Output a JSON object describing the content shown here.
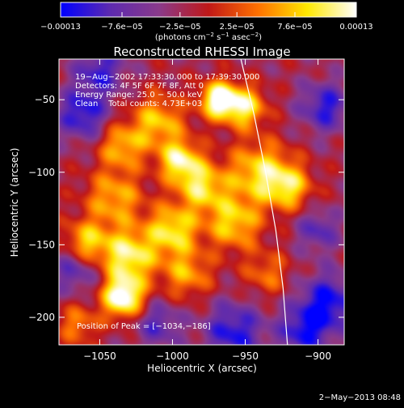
{
  "chart_data": {
    "type": "heatmap",
    "title": "Reconstructed RHESSI Image",
    "xlabel": "Heliocentric X (arcsec)",
    "ylabel": "Heliocentric Y (arcsec)",
    "xlim": [
      -1078,
      -882
    ],
    "ylim": [
      -219,
      -22
    ],
    "xticks": [
      -1050,
      -1000,
      -950,
      -900
    ],
    "xtick_labels": [
      "−1050",
      "−1000",
      "−950",
      "−900"
    ],
    "yticks": [
      -50,
      -100,
      -150,
      -200
    ],
    "ytick_labels": [
      "−50",
      "−100",
      "−150",
      "−200"
    ],
    "colorbar": {
      "label_main": "(photons cm",
      "label_sup1": "−2",
      "label_mid1": " s",
      "label_sup2": "−1",
      "label_mid2": " asec",
      "label_sup3": "−2",
      "label_end": ")",
      "range": [
        -0.00013,
        0.00013
      ],
      "ticks": [
        -0.00013,
        -7.6e-05,
        -2.5e-05,
        2.5e-05,
        7.6e-05,
        0.00013
      ],
      "tick_labels": [
        "−0.00013",
        "−7.6e−05",
        "−2.5e−05",
        "2.5e−05",
        "7.6e−05",
        "0.00013"
      ],
      "colors": [
        "#0000ff",
        "#5d2ab0",
        "#8a3a8a",
        "#c01818",
        "#ff7000",
        "#ffe800",
        "#ffffff"
      ]
    },
    "annotations": {
      "line1": "19−Aug−2002 17:33:30.000 to 17:39:30.000",
      "line2": "Detectors: 4F 5F 6F 7F 8F, Att 0",
      "line3": "Energy Range: 25.0 − 50.0 keV",
      "line4": "Clean    Total counts: 4.73E+03",
      "peak": "Position of Peak = [−1034,−186]"
    },
    "peak": [
      -1034,
      -186
    ],
    "limb_curve": [
      [
        -953,
        -22
      ],
      [
        -944,
        -60
      ],
      [
        -936,
        -100
      ],
      [
        -929,
        -140
      ],
      [
        -924,
        -180
      ],
      [
        -921,
        -219
      ]
    ],
    "blobs": [
      {
        "x": -968,
        "y": -50,
        "s": 9,
        "a": 1.2
      },
      {
        "x": -950,
        "y": -55,
        "s": 10,
        "a": 0.85
      },
      {
        "x": -1010,
        "y": -65,
        "s": 13,
        "a": 0.7
      },
      {
        "x": -1035,
        "y": -82,
        "s": 11,
        "a": 0.65
      },
      {
        "x": -995,
        "y": -92,
        "s": 10,
        "a": 0.9
      },
      {
        "x": -980,
        "y": -110,
        "s": 12,
        "a": 0.8
      },
      {
        "x": -1040,
        "y": -118,
        "s": 14,
        "a": 0.65
      },
      {
        "x": -940,
        "y": -100,
        "s": 15,
        "a": 0.8
      },
      {
        "x": -920,
        "y": -110,
        "s": 11,
        "a": 0.7
      },
      {
        "x": -958,
        "y": -135,
        "s": 13,
        "a": 0.75
      },
      {
        "x": -1000,
        "y": -140,
        "s": 12,
        "a": 0.85
      },
      {
        "x": -1060,
        "y": -150,
        "s": 11,
        "a": 0.85
      },
      {
        "x": -1030,
        "y": -158,
        "s": 13,
        "a": 0.95
      },
      {
        "x": -990,
        "y": -170,
        "s": 12,
        "a": 0.6
      },
      {
        "x": -1034,
        "y": -186,
        "s": 10,
        "a": 1.2
      },
      {
        "x": -935,
        "y": -170,
        "s": 11,
        "a": 0.45
      },
      {
        "x": -1065,
        "y": -205,
        "s": 10,
        "a": 0.5
      },
      {
        "x": -1062,
        "y": -60,
        "s": 12,
        "a": -0.7
      },
      {
        "x": -1066,
        "y": -165,
        "s": 12,
        "a": -0.6
      },
      {
        "x": -895,
        "y": -55,
        "s": 12,
        "a": -0.65
      },
      {
        "x": -893,
        "y": -190,
        "s": 14,
        "a": -0.75
      },
      {
        "x": -958,
        "y": -210,
        "s": 14,
        "a": -0.7
      },
      {
        "x": -910,
        "y": -210,
        "s": 12,
        "a": -0.65
      },
      {
        "x": -1010,
        "y": -205,
        "s": 11,
        "a": -0.5
      },
      {
        "x": -1050,
        "y": -30,
        "s": 12,
        "a": -0.6
      },
      {
        "x": -900,
        "y": -140,
        "s": 10,
        "a": -0.5
      }
    ]
  },
  "footer": {
    "timestamp": "2−May−2013 08:48"
  }
}
